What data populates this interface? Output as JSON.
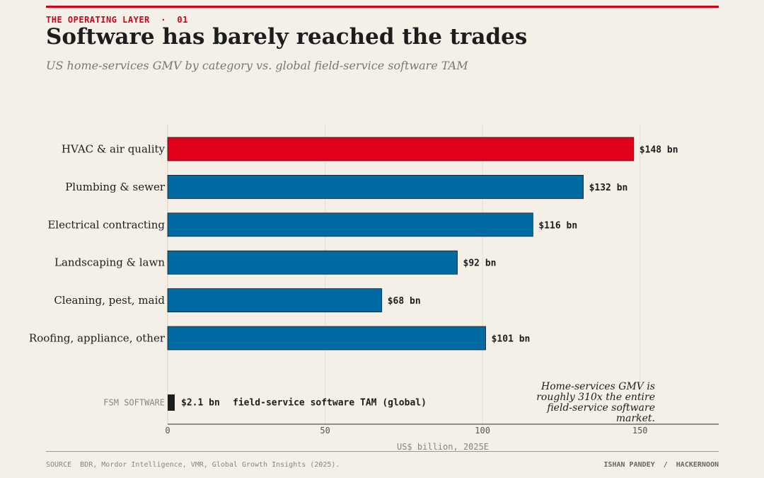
{
  "header": {
    "kicker": "THE OPERATING LAYER  ·  01",
    "title": "Software has barely reached the trades",
    "subtitle": "US home-services GMV by category vs. global field-service software TAM"
  },
  "colors": {
    "highlight": "#e2001a",
    "primary": "#006aa3",
    "fsm": "#1d1d1d",
    "accent_rule": "#d0021b"
  },
  "chart_data": {
    "type": "bar",
    "orientation": "horizontal",
    "categories": [
      "HVAC & air quality",
      "Plumbing & sewer",
      "Electrical contracting",
      "Landscaping & lawn",
      "Cleaning, pest, maid",
      "Roofing, appliance, other"
    ],
    "values": [
      148,
      132,
      116,
      92,
      68,
      101
    ],
    "value_labels": [
      "$148 bn",
      "$132 bn",
      "$116 bn",
      "$92 bn",
      "$68 bn",
      "$101 bn"
    ],
    "highlight_index": 0,
    "comparison": {
      "tag": "FSM SOFTWARE",
      "value": 2.1,
      "value_label": "$2.1 bn",
      "description": "field-service software TAM (global)"
    },
    "xlim": [
      0,
      175
    ],
    "xticks": [
      0,
      50,
      100,
      150
    ],
    "xlabel": "US$ billion, 2025E",
    "grid": true,
    "annotation": [
      "Home-services GMV is",
      "roughly 310x the entire",
      "field-service software",
      "market."
    ]
  },
  "footer": {
    "source": "SOURCE  BDR, Mordor Intelligence, VMR, Global Growth Insights (2025).",
    "byline": "ISHAN PANDEY  /  HACKERNOON"
  }
}
